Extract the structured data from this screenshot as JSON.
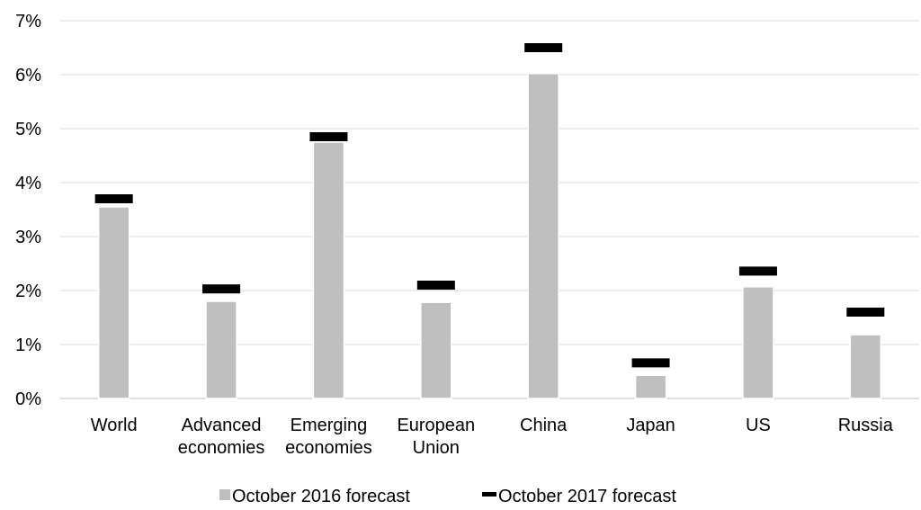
{
  "chart_data": {
    "type": "bar",
    "title": "",
    "xlabel": "",
    "ylabel": "",
    "ylim": [
      0,
      7
    ],
    "y_ticks": [
      "0%",
      "1%",
      "2%",
      "3%",
      "4%",
      "5%",
      "6%",
      "7%"
    ],
    "y_tick_values": [
      0,
      1,
      2,
      3,
      4,
      5,
      6,
      7
    ],
    "categories": [
      [
        "World"
      ],
      [
        "Advanced",
        "economies"
      ],
      [
        "Emerging",
        "economies"
      ],
      [
        "European",
        "Union"
      ],
      [
        "China"
      ],
      [
        "Japan"
      ],
      [
        "US"
      ],
      [
        "Russia"
      ]
    ],
    "series": [
      {
        "name": "October 2016 forecast",
        "kind": "bar",
        "color": "#bfbfbf",
        "values": [
          3.55,
          1.8,
          4.75,
          1.78,
          6.02,
          0.43,
          2.07,
          1.18
        ]
      },
      {
        "name": "October 2017 forecast",
        "kind": "marker",
        "color": "#000000",
        "values": [
          3.7,
          2.03,
          4.85,
          2.1,
          6.5,
          0.66,
          2.36,
          1.6
        ]
      }
    ],
    "grid": true,
    "legend_position": "bottom"
  }
}
